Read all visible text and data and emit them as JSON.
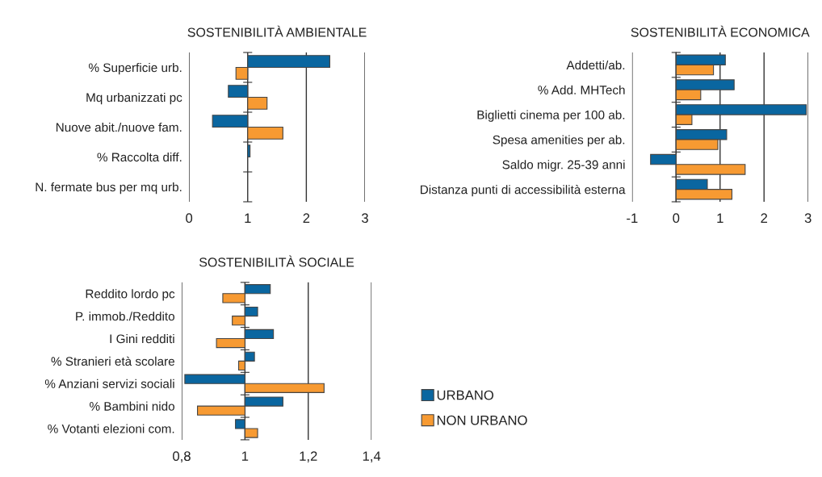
{
  "chart_data": [
    {
      "type": "bar",
      "orientation": "horizontal",
      "title": "SOSTENIBILITÀ AMBIENTALE",
      "categories": [
        "% Superficie urb.",
        "Mq urbanizzati pc",
        "Nuove abit./nuove fam.",
        "% Raccolta diff.",
        "N. fermate bus per mq urb."
      ],
      "series": [
        {
          "color": "#0a66a0",
          "base": [
            1,
            1,
            1,
            1,
            null
          ],
          "values": [
            1.4,
            -0.33,
            -0.6,
            0.04,
            null
          ]
        },
        {
          "color": "#f79a32",
          "base": [
            1,
            1,
            1,
            null,
            null
          ],
          "values": [
            -0.2,
            0.33,
            0.6,
            null,
            null
          ]
        }
      ],
      "xlim": [
        0,
        3
      ],
      "xticks": [
        0,
        1,
        2,
        3
      ],
      "grid": "x"
    },
    {
      "type": "bar",
      "orientation": "horizontal",
      "title": "SOSTENIBILITÀ ECONOMICA",
      "categories": [
        "Addetti/ab.",
        "% Add. MHTech",
        "Biglietti cinema per 100 ab.",
        "Spesa amenities per ab.",
        "Saldo migr. 25-39 anni",
        "Distanza punti di accessibilità esterna"
      ],
      "series": [
        {
          "color": "#0a66a0",
          "values": [
            1.12,
            1.32,
            2.96,
            1.15,
            -0.58,
            0.71
          ]
        },
        {
          "color": "#f79a32",
          "values": [
            0.85,
            0.56,
            0.36,
            0.95,
            1.57,
            1.27
          ]
        }
      ],
      "xlim": [
        -1,
        3
      ],
      "xticks": [
        {
          "value": -1,
          "label": "-1"
        },
        0,
        1,
        2,
        3
      ],
      "grid": "x"
    },
    {
      "type": "bar",
      "orientation": "horizontal",
      "title": "SOSTENIBILITÀ SOCIALE",
      "categories": [
        "Reddito lordo pc",
        "P. immob./Reddito",
        "I Gini redditi",
        "% Stranieri età scolare",
        "% Anziani servizi sociali",
        "% Bambini nido",
        "% Votanti elezioni com."
      ],
      "series": [
        {
          "name": "URBANO",
          "color": "#0a66a0",
          "base": [
            1,
            1,
            1,
            1,
            1,
            1,
            1
          ],
          "values": [
            0.08,
            0.04,
            0.09,
            0.03,
            -0.19,
            0.12,
            -0.03
          ]
        },
        {
          "name": "NON URBANO",
          "color": "#f79a32",
          "base": [
            1,
            1,
            1,
            1,
            1,
            1,
            1
          ],
          "values": [
            -0.07,
            -0.04,
            -0.09,
            -0.02,
            0.25,
            -0.15,
            0.04
          ]
        }
      ],
      "xlim": [
        0.8,
        1.4
      ],
      "xticks": [
        {
          "value": 0.8,
          "label": "0,8"
        },
        1,
        {
          "value": 1.2,
          "label": "1,2"
        },
        {
          "value": 1.4,
          "label": "1,4"
        }
      ],
      "grid": "x",
      "legend": "right"
    }
  ]
}
